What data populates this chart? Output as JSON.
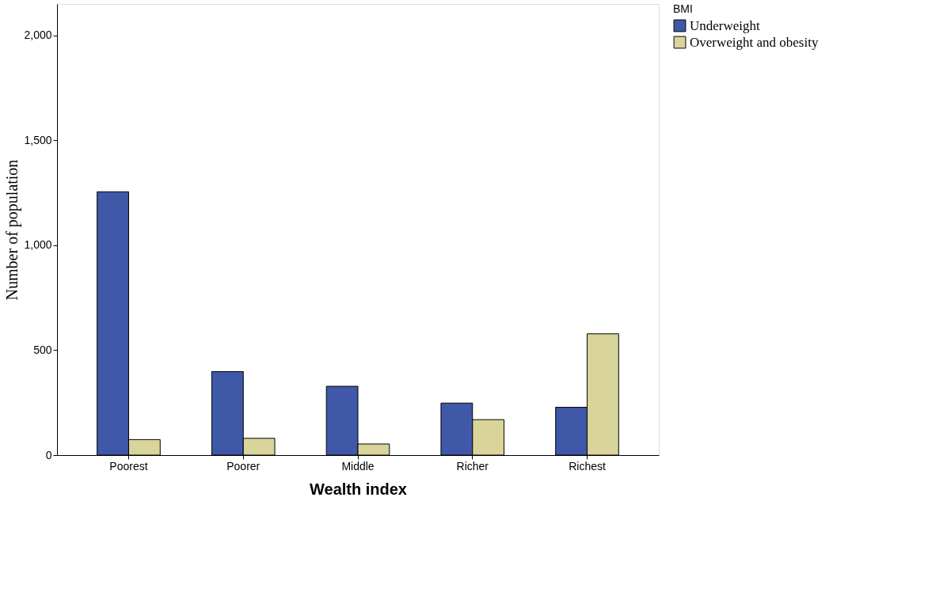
{
  "chart_data": {
    "type": "bar",
    "xlabel": "Wealth index",
    "ylabel": "Number of population",
    "legend_title": "BMI",
    "legend": "top right",
    "categories": [
      "Poorest",
      "Poorer",
      "Middle",
      "Richer",
      "Richest"
    ],
    "series": [
      {
        "name": "Underweight",
        "color": "#3f58a8",
        "values": [
          1255,
          398,
          328,
          248,
          228
        ]
      },
      {
        "name": "Overweight and obesity",
        "color": "#d8d49a",
        "values": [
          74,
          80,
          53,
          169,
          578
        ]
      }
    ],
    "ylim": [
      0,
      2150
    ],
    "yticks": [
      0,
      500,
      {
        "value": 1000,
        "label": "1,000"
      },
      {
        "value": 1500,
        "label": "1,500"
      },
      {
        "value": 2000,
        "label": "2,000"
      }
    ],
    "grid": false
  }
}
